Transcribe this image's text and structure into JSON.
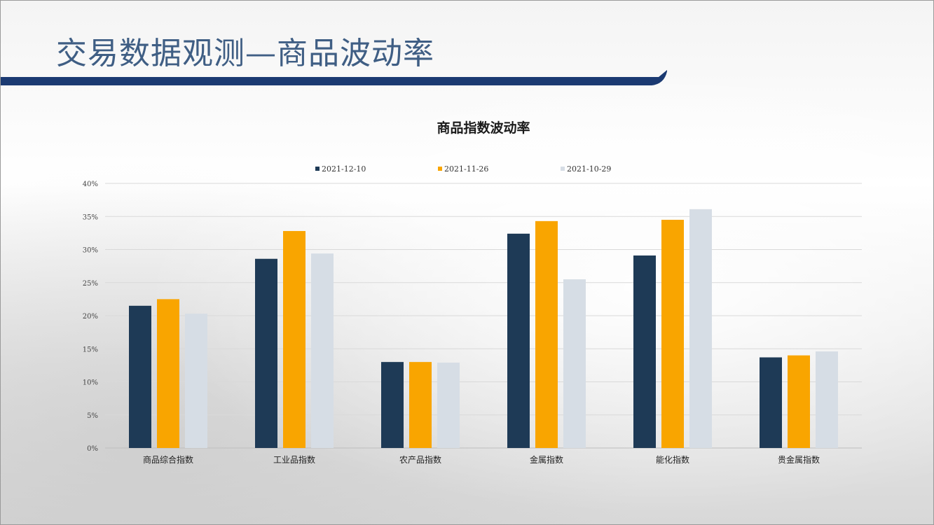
{
  "slide": {
    "title": "交易数据观测—商品波动率"
  },
  "colors": {
    "title_text": "#3f5e84",
    "title_bar": "#1b3a72"
  },
  "chart_data": {
    "type": "bar",
    "title": "商品指数波动率",
    "categories": [
      "商品综合指数",
      "工业品指数",
      "农产品指数",
      "金属指数",
      "能化指数",
      "贵金属指数"
    ],
    "series": [
      {
        "name": "2021-12-10",
        "color": "#1e3a56",
        "values": [
          21.5,
          28.6,
          13.0,
          32.4,
          29.1,
          13.7
        ]
      },
      {
        "name": "2021-11-26",
        "color": "#f9a500",
        "values": [
          22.5,
          32.8,
          13.0,
          34.3,
          34.5,
          14.0
        ]
      },
      {
        "name": "2021-10-29",
        "color": "#d6dde5",
        "values": [
          20.3,
          29.4,
          12.9,
          25.5,
          36.1,
          14.6
        ]
      }
    ],
    "yticks": [
      "0%",
      "5%",
      "10%",
      "15%",
      "20%",
      "25%",
      "30%",
      "35%",
      "40%"
    ],
    "ylim": [
      0,
      40
    ],
    "grid": true,
    "legend_position": "top"
  }
}
